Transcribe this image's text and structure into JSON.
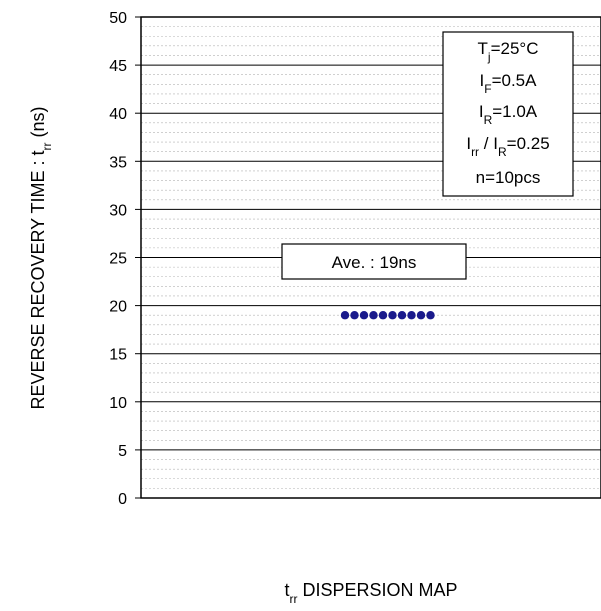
{
  "chart_data": {
    "type": "scatter",
    "title": "",
    "xlabel": {
      "main": "t",
      "sub": "rr",
      "rest": " DISPERSION MAP"
    },
    "ylabel": {
      "main": "REVERSE RECOVERY TIME : t",
      "sub": "rr",
      "rest": " (ns)"
    },
    "ylim": [
      0,
      50
    ],
    "yticks": [
      0,
      5,
      10,
      15,
      20,
      25,
      30,
      35,
      40,
      45,
      50
    ],
    "minor_grid_step": 1,
    "grid": true,
    "marker_color": "#1a1a8c",
    "series": [
      {
        "values": [
          19,
          19,
          19,
          19,
          19,
          19,
          19,
          19,
          19,
          19
        ]
      }
    ],
    "annotation": {
      "text": "Ave. : 19ns",
      "value": 19
    },
    "conditions": [
      {
        "main": "T",
        "sub": "j",
        "rest": "=25°C"
      },
      {
        "main": "I",
        "sub": "F",
        "rest": "=0.5A"
      },
      {
        "main": "I",
        "sub": "R",
        "rest": "=1.0A"
      },
      {
        "main": "I",
        "sub": "rr",
        "mid": " / I",
        "sub2": "R",
        "rest": "=0.25"
      },
      {
        "main": "n=10pcs"
      }
    ]
  }
}
